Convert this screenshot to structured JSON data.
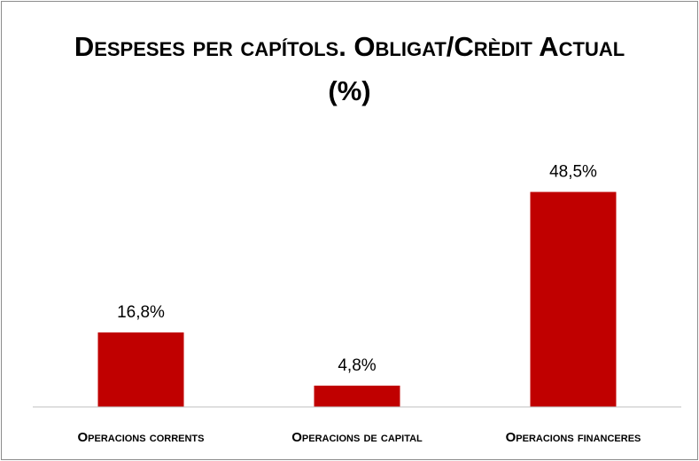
{
  "chart_data": {
    "type": "bar",
    "title": "Despeses per capítols. Obligat/Crèdit Actual (%)",
    "categories": [
      "Operacions corrents",
      "Operacions de capital",
      "Operacions financeres"
    ],
    "values": [
      16.8,
      4.8,
      48.5
    ],
    "value_labels": [
      "16,8%",
      "4,8%",
      "48,5%"
    ],
    "color": "#c00000",
    "ylim": [
      0,
      50
    ]
  }
}
